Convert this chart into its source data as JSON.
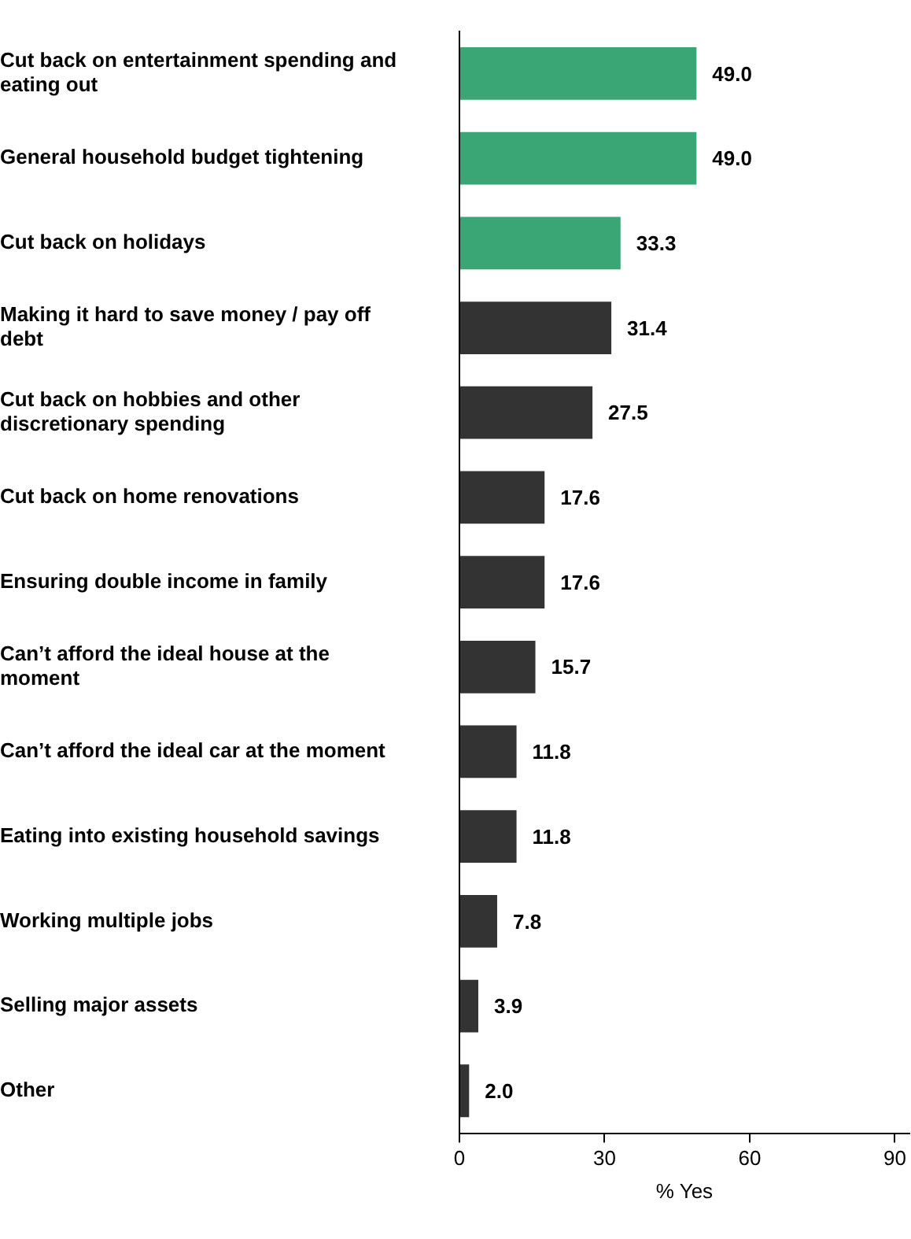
{
  "chart_data": {
    "type": "bar",
    "orientation": "horizontal",
    "categories": [
      "Cut back on entertainment spending and eating out",
      "General household budget tightening",
      "Cut back on holidays",
      "Making it hard to save money / pay off debt",
      "Cut back on hobbies and other discretionary spending",
      "Cut back on home renovations",
      "Ensuring double income in family",
      "Can’t afford the ideal house at the moment",
      "Can’t afford the ideal car at the moment",
      "Eating into existing household savings",
      "Working multiple jobs",
      "Selling major assets",
      "Other"
    ],
    "values": [
      49.0,
      49.0,
      33.3,
      31.4,
      27.5,
      17.6,
      17.6,
      15.7,
      11.8,
      11.8,
      7.8,
      3.9,
      2.0
    ],
    "value_labels": [
      "49.0",
      "49.0",
      "33.3",
      "31.4",
      "27.5",
      "17.6",
      "17.6",
      "15.7",
      "11.8",
      "11.8",
      "7.8",
      "3.9",
      "2.0"
    ],
    "colors": [
      "#3aa676",
      "#3aa676",
      "#3aa676",
      "#333333",
      "#333333",
      "#333333",
      "#333333",
      "#333333",
      "#333333",
      "#333333",
      "#333333",
      "#333333",
      "#333333"
    ],
    "xlabel": "% Yes",
    "xlim": [
      0,
      93
    ],
    "xticks": [
      0,
      30,
      60,
      90
    ],
    "grid": false,
    "legend": false
  }
}
